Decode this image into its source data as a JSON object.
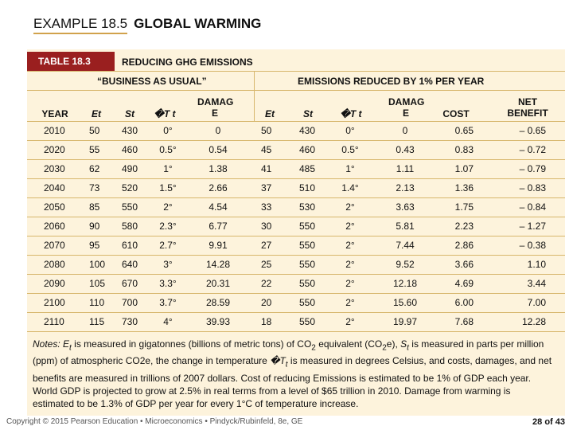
{
  "header": {
    "example": "EXAMPLE 18.5",
    "title": "GLOBAL WARMING"
  },
  "table": {
    "tag": "TABLE 18.3",
    "title": "REDUCING GHG EMISSIONS",
    "group_bau": "“BUSINESS AS USUAL”",
    "group_reduced": "EMISSIONS REDUCED BY 1% PER YEAR",
    "columns": [
      "YEAR",
      "Et",
      "St",
      "�T t",
      "DAMAG E",
      "Et",
      "St",
      "�T t",
      "DAMAG E",
      "COST",
      "NET BENEFIT"
    ],
    "rows": [
      [
        "2010",
        "50",
        "430",
        "0°",
        "0",
        "50",
        "430",
        "0°",
        "0",
        "0.65",
        "– 0.65"
      ],
      [
        "2020",
        "55",
        "460",
        "0.5°",
        "0.54",
        "45",
        "460",
        "0.5°",
        "0.43",
        "0.83",
        "– 0.72"
      ],
      [
        "2030",
        "62",
        "490",
        "1°",
        "1.38",
        "41",
        "485",
        "1°",
        "1.11",
        "1.07",
        "– 0.79"
      ],
      [
        "2040",
        "73",
        "520",
        "1.5°",
        "2.66",
        "37",
        "510",
        "1.4°",
        "2.13",
        "1.36",
        "– 0.83"
      ],
      [
        "2050",
        "85",
        "550",
        "2°",
        "4.54",
        "33",
        "530",
        "2°",
        "3.63",
        "1.75",
        "– 0.84"
      ],
      [
        "2060",
        "90",
        "580",
        "2.3°",
        "6.77",
        "30",
        "550",
        "2°",
        "5.81",
        "2.23",
        "– 1.27"
      ],
      [
        "2070",
        "95",
        "610",
        "2.7°",
        "9.91",
        "27",
        "550",
        "2°",
        "7.44",
        "2.86",
        "– 0.38"
      ],
      [
        "2080",
        "100",
        "640",
        "3°",
        "14.28",
        "25",
        "550",
        "2°",
        "9.52",
        "3.66",
        "1.10"
      ],
      [
        "2090",
        "105",
        "670",
        "3.3°",
        "20.31",
        "22",
        "550",
        "2°",
        "12.18",
        "4.69",
        "3.44"
      ],
      [
        "2100",
        "110",
        "700",
        "3.7°",
        "28.59",
        "20",
        "550",
        "2°",
        "15.60",
        "6.00",
        "7.00"
      ],
      [
        "2110",
        "115",
        "730",
        "4°",
        "39.93",
        "18",
        "550",
        "2°",
        "19.97",
        "7.68",
        "12.28"
      ]
    ]
  },
  "notes": {
    "label": "Notes:",
    "e_sym": "E",
    "e_sub": "t",
    "t1": " is measured in gigatonnes (billions of metric tons) of CO",
    "t1sub": "2",
    "t2": " equivalent (CO",
    "t2sub": "2",
    "t3": "e), ",
    "s_sym": "S",
    "s_sub": "t",
    "t4": " is measured in parts per million (ppm) of atmospheric CO2e, the change in temperature ",
    "dt_sym": "�T",
    "dt_sub": "t",
    "t5": " is measured in degrees Celsius, and costs, damages, and net benefits are measured in trillions of 2007 dollars. Cost of reducing Emissions is estimated to be 1% of GDP each year. World GDP is projected to grow at 2.5% in real terms from a level of $65 trillion in 2010. Damage from warming is estimated to be 1.3% of GDP per year for every 1°C of temperature increase."
  },
  "footer": {
    "copyright": "Copyright © 2015 Pearson Education • Microeconomics • Pindyck/Rubinfeld, 8e, GE",
    "page": "28 of 43"
  }
}
